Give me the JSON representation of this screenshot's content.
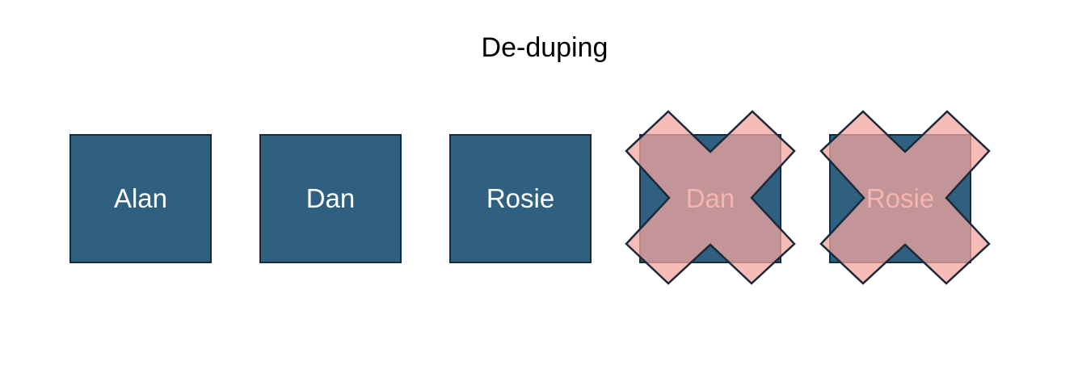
{
  "title": "De-duping",
  "boxes": [
    {
      "label": "Alan",
      "duplicate": false
    },
    {
      "label": "Dan",
      "duplicate": false
    },
    {
      "label": "Rosie",
      "duplicate": false
    },
    {
      "label": "Dan",
      "duplicate": true
    },
    {
      "label": "Rosie",
      "duplicate": true
    }
  ],
  "colors": {
    "box_fill": "#30607f",
    "box_border": "#162c3c",
    "cross_fill": "#f4a6a0",
    "duplicate_text": "#f8b4ae"
  }
}
